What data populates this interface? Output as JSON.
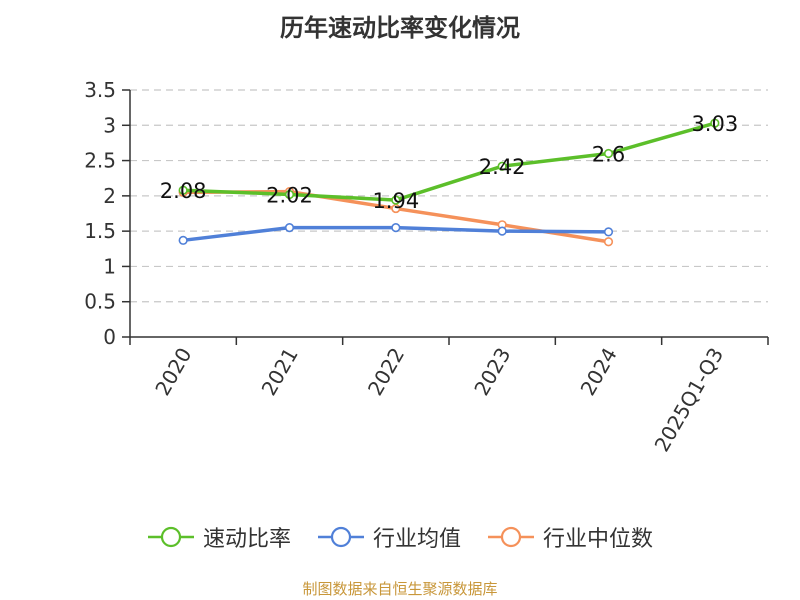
{
  "title": "历年速动比率变化情况",
  "source_note": "制图数据来自恒生聚源数据库",
  "chart_data": {
    "type": "line",
    "title": "历年速动比率变化情况",
    "categories": [
      "2020",
      "2021",
      "2022",
      "2023",
      "2024",
      "2025Q1-Q3"
    ],
    "ylim": [
      0,
      3.5
    ],
    "yticks": [
      "0",
      "0.5",
      "1",
      "1.5",
      "2",
      "2.5",
      "3",
      "3.5"
    ],
    "grid": true,
    "legend_position": "bottom",
    "series": [
      {
        "name": "速动比率",
        "color": "#5cbf2a",
        "values": [
          2.08,
          2.02,
          1.94,
          2.42,
          2.6,
          3.03
        ],
        "labels": [
          "2.08",
          "2.02",
          "1.94",
          "2.42",
          "2.6",
          "3.03"
        ]
      },
      {
        "name": "行业均值",
        "color": "#5080d8",
        "values": [
          1.37,
          1.55,
          1.55,
          1.5,
          1.49,
          null
        ]
      },
      {
        "name": "行业中位数",
        "color": "#f5915a",
        "values": [
          2.05,
          2.06,
          1.82,
          1.59,
          1.35,
          null
        ]
      }
    ]
  }
}
